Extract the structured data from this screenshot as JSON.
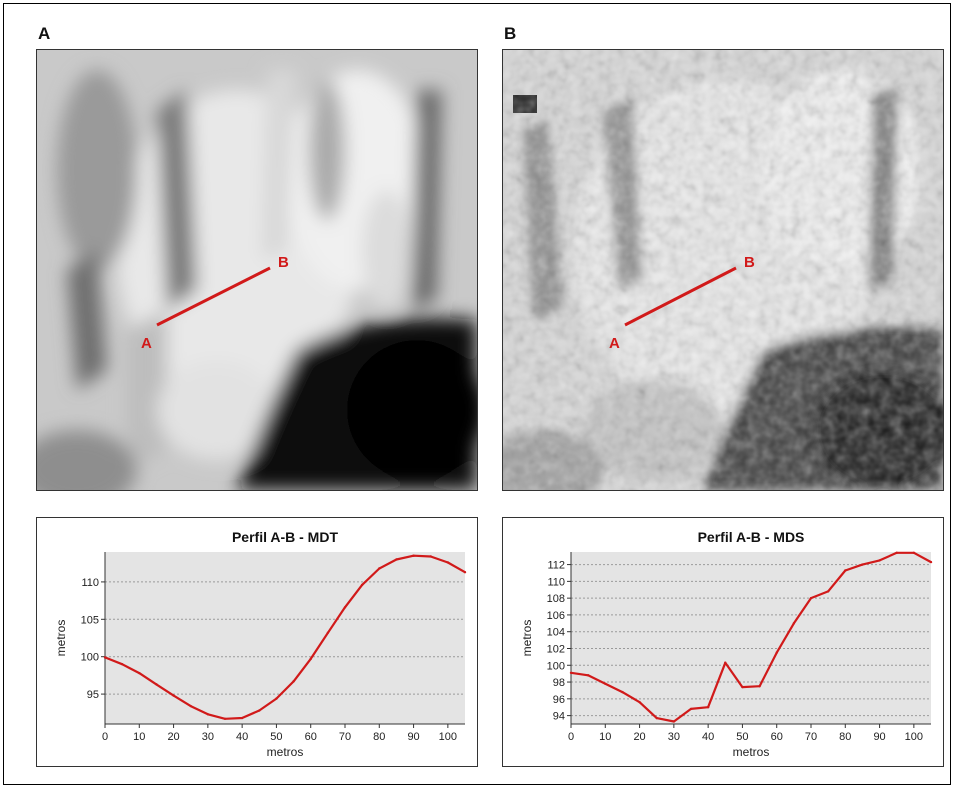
{
  "panels": {
    "left_letter": "A",
    "right_letter": "B"
  },
  "maps": {
    "left": {
      "point_start": "A",
      "point_end": "B"
    },
    "right": {
      "point_start": "A",
      "point_end": "B"
    }
  },
  "colors": {
    "profile_line": "#d11a1a",
    "plot_bg": "#e4e4e4"
  },
  "chart_data": [
    {
      "type": "line",
      "title": "Perfil A-B - MDT",
      "xlabel": "metros",
      "ylabel": "metros",
      "xlim": [
        0,
        105
      ],
      "ylim": [
        91,
        114
      ],
      "xticks": [
        0,
        10,
        20,
        30,
        40,
        50,
        60,
        70,
        80,
        90,
        100
      ],
      "yticks": [
        95,
        100,
        105,
        110
      ],
      "grid": true,
      "series": [
        {
          "x": [
            0,
            5,
            10,
            15,
            20,
            25,
            30,
            35,
            40,
            45,
            50,
            55,
            60,
            65,
            70,
            75,
            80,
            85,
            90,
            95,
            100,
            105
          ],
          "y": [
            99.9,
            99.0,
            97.8,
            96.3,
            94.8,
            93.4,
            92.3,
            91.7,
            91.8,
            92.8,
            94.4,
            96.7,
            99.7,
            103.2,
            106.6,
            109.6,
            111.8,
            113.0,
            113.5,
            113.4,
            112.6,
            111.3
          ]
        }
      ]
    },
    {
      "type": "line",
      "title": "Perfil A-B - MDS",
      "xlabel": "metros",
      "ylabel": "metros",
      "xlim": [
        0,
        105
      ],
      "ylim": [
        93,
        113.5
      ],
      "xticks": [
        0,
        10,
        20,
        30,
        40,
        50,
        60,
        70,
        80,
        90,
        100
      ],
      "yticks": [
        94,
        96,
        98,
        100,
        102,
        104,
        106,
        108,
        110,
        112
      ],
      "grid": true,
      "series": [
        {
          "x": [
            0,
            5,
            10,
            15,
            20,
            25,
            30,
            35,
            40,
            45,
            50,
            55,
            60,
            65,
            70,
            75,
            80,
            85,
            90,
            95,
            100,
            105
          ],
          "y": [
            99.1,
            98.8,
            97.8,
            96.8,
            95.6,
            93.7,
            93.3,
            94.8,
            95.0,
            100.3,
            97.4,
            97.5,
            101.5,
            105.0,
            108.0,
            108.8,
            111.3,
            112.0,
            112.5,
            113.4,
            113.4,
            112.3
          ]
        }
      ]
    }
  ]
}
